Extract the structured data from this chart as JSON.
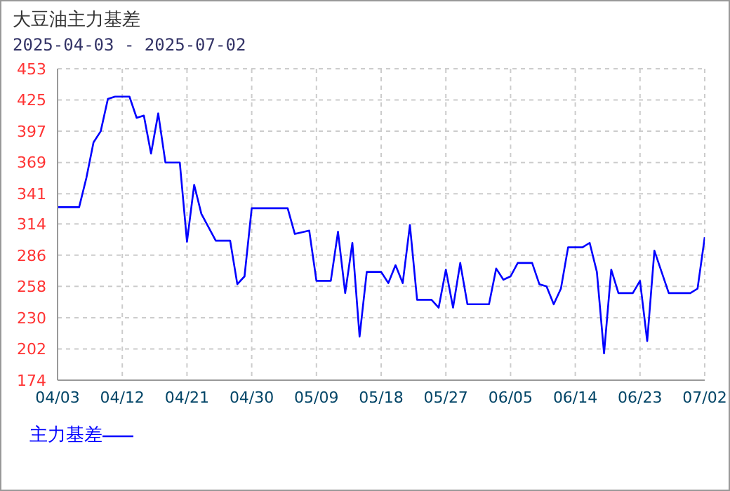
{
  "chart_data": {
    "type": "line",
    "title": "大豆油主力基差",
    "subtitle": "2025-04-03 - 2025-07-02",
    "x": [
      "2025-04-03",
      "2025-04-06",
      "2025-04-07",
      "2025-04-08",
      "2025-04-09",
      "2025-04-10",
      "2025-04-11",
      "2025-04-13",
      "2025-04-14",
      "2025-04-15",
      "2025-04-16",
      "2025-04-17",
      "2025-04-18",
      "2025-04-20",
      "2025-04-21",
      "2025-04-22",
      "2025-04-23",
      "2025-04-25",
      "2025-04-27",
      "2025-04-28",
      "2025-04-29",
      "2025-04-30",
      "2025-05-05",
      "2025-05-06",
      "2025-05-08",
      "2025-05-09",
      "2025-05-11",
      "2025-05-12",
      "2025-05-13",
      "2025-05-14",
      "2025-05-15",
      "2025-05-16",
      "2025-05-18",
      "2025-05-19",
      "2025-05-20",
      "2025-05-21",
      "2025-05-22",
      "2025-05-23",
      "2025-05-25",
      "2025-05-26",
      "2025-05-27",
      "2025-05-28",
      "2025-05-29",
      "2025-05-30",
      "2025-06-02",
      "2025-06-03",
      "2025-06-04",
      "2025-06-05",
      "2025-06-06",
      "2025-06-08",
      "2025-06-09",
      "2025-06-10",
      "2025-06-11",
      "2025-06-12",
      "2025-06-13",
      "2025-06-15",
      "2025-06-16",
      "2025-06-17",
      "2025-06-18",
      "2025-06-19",
      "2025-06-20",
      "2025-06-22",
      "2025-06-23",
      "2025-06-24",
      "2025-06-25",
      "2025-06-27",
      "2025-06-30",
      "2025-07-01",
      "2025-07-02"
    ],
    "series": [
      {
        "name": "主力基差",
        "color": "#0000ff",
        "values": [
          329,
          329,
          355,
          387,
          397,
          426,
          428,
          428,
          409,
          411,
          377,
          413,
          369,
          369,
          298,
          349,
          323,
          299,
          299,
          260,
          267,
          328,
          328,
          305,
          308,
          263,
          263,
          307,
          252,
          297,
          213,
          271,
          271,
          261,
          277,
          261,
          313,
          246,
          246,
          239,
          273,
          239,
          279,
          242,
          242,
          274,
          264,
          267,
          279,
          279,
          260,
          258,
          242,
          256,
          293,
          293,
          297,
          271,
          198,
          273,
          252,
          252,
          263,
          209,
          290,
          252,
          252,
          256,
          302
        ]
      }
    ],
    "xlim": [
      "2025-04-03",
      "2025-07-02"
    ],
    "xticks": [
      {
        "value": "2025-04-03",
        "label": "04/03"
      },
      {
        "value": "2025-04-12",
        "label": "04/12"
      },
      {
        "value": "2025-04-21",
        "label": "04/21"
      },
      {
        "value": "2025-04-30",
        "label": "04/30"
      },
      {
        "value": "2025-05-09",
        "label": "05/09"
      },
      {
        "value": "2025-05-18",
        "label": "05/18"
      },
      {
        "value": "2025-05-27",
        "label": "05/27"
      },
      {
        "value": "2025-06-05",
        "label": "06/05"
      },
      {
        "value": "2025-06-14",
        "label": "06/14"
      },
      {
        "value": "2025-06-23",
        "label": "06/23"
      },
      {
        "value": "2025-07-02",
        "label": "07/02"
      }
    ],
    "ylim": [
      174,
      453
    ],
    "yticks": [
      174,
      202,
      230,
      258,
      286,
      314,
      341,
      369,
      397,
      425,
      453
    ],
    "grid": true,
    "legend": "bottom left",
    "marker": "none",
    "line_style": "solid"
  }
}
